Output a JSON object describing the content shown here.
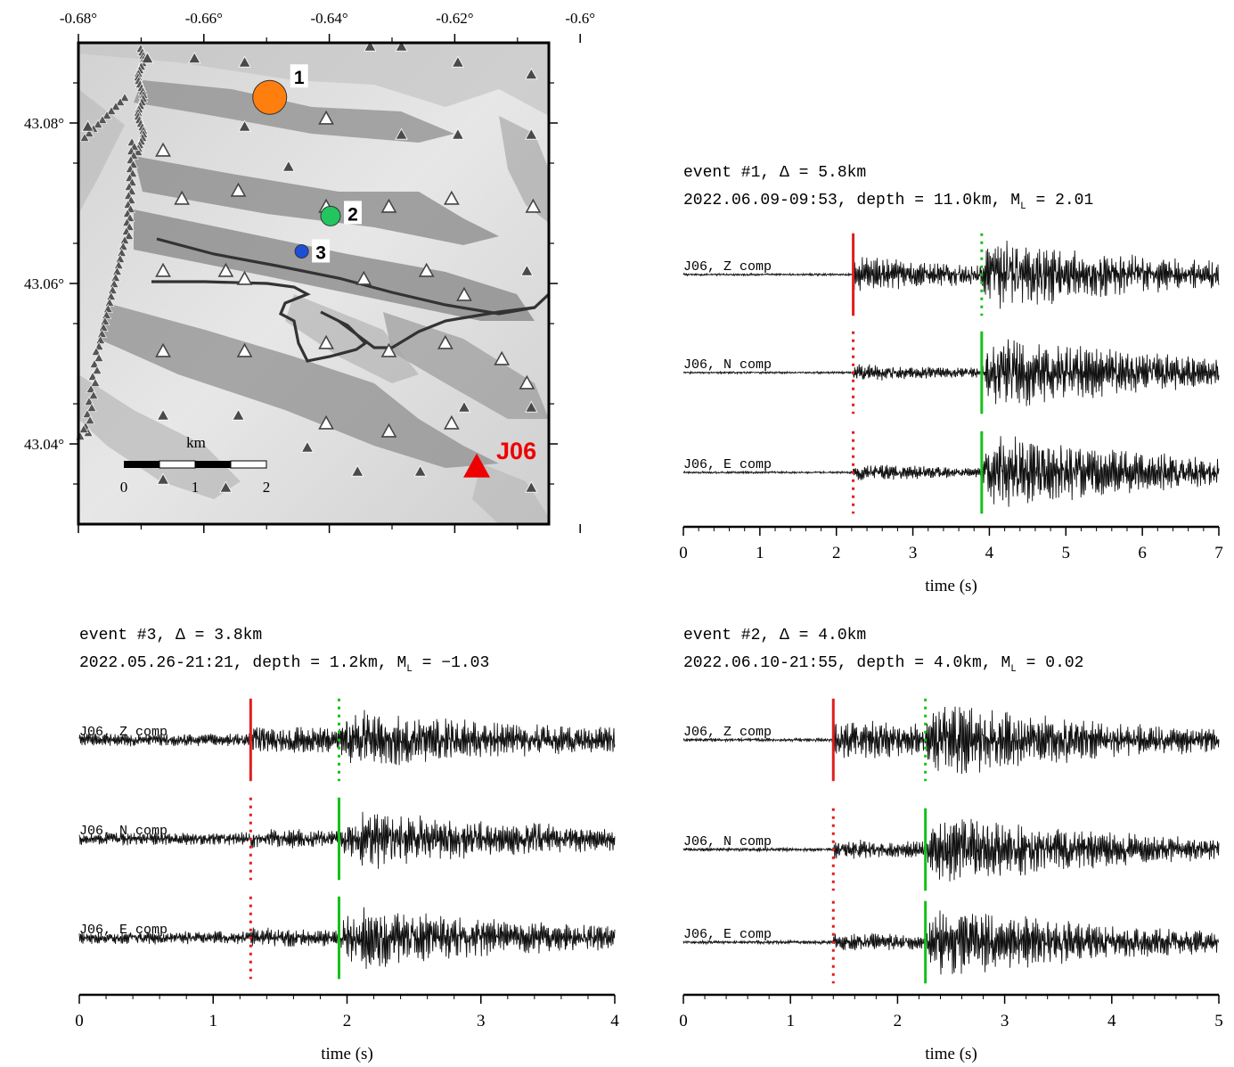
{
  "map": {
    "lon_ticks": [
      "-0.68°",
      "-0.66°",
      "-0.64°",
      "-0.62°",
      "-0.6°"
    ],
    "lon_values": [
      -0.68,
      -0.66,
      -0.64,
      -0.62,
      -0.6
    ],
    "lat_ticks": [
      "43.08°",
      "43.06°",
      "43.04°"
    ],
    "lat_values": [
      43.08,
      43.06,
      43.04
    ],
    "lon_range": [
      -0.68,
      -0.605
    ],
    "lat_range": [
      43.03,
      43.09
    ],
    "scale_bar": {
      "unit": "km",
      "labels": [
        "0",
        "1",
        "2"
      ]
    },
    "station": {
      "name": "J06",
      "lon": -0.6165,
      "lat": 43.0368,
      "color": "#ee0000"
    },
    "events": [
      {
        "label": "1",
        "lon": -0.6495,
        "lat": 43.0832,
        "color": "#ff7f0e",
        "size": "large"
      },
      {
        "label": "2",
        "lon": -0.6398,
        "lat": 43.0684,
        "color": "#22c55e",
        "size": "medium"
      },
      {
        "label": "3",
        "lon": -0.6444,
        "lat": 43.064,
        "color": "#1d4ed8",
        "size": "small"
      }
    ],
    "stations_filled": [
      [
        -0.669,
        43.088
      ],
      [
        -0.6615,
        43.088
      ],
      [
        -0.6535,
        43.0875
      ],
      [
        -0.6335,
        43.0895
      ],
      [
        -0.6285,
        43.0895
      ],
      [
        -0.6195,
        43.0875
      ],
      [
        -0.6078,
        43.086
      ],
      [
        -0.6785,
        43.0795
      ],
      [
        -0.6535,
        43.0795
      ],
      [
        -0.6285,
        43.0785
      ],
      [
        -0.6195,
        43.0785
      ],
      [
        -0.6078,
        43.0785
      ],
      [
        -0.6465,
        43.0745
      ],
      [
        -0.6665,
        43.0355
      ],
      [
        -0.6565,
        43.0345
      ],
      [
        -0.6355,
        43.0365
      ],
      [
        -0.6255,
        43.0365
      ],
      [
        -0.6078,
        43.0345
      ],
      [
        -0.6185,
        43.0445
      ],
      [
        -0.6078,
        43.0445
      ],
      [
        -0.6435,
        43.0395
      ],
      [
        -0.6545,
        43.0435
      ],
      [
        -0.6665,
        43.0435
      ],
      [
        -0.6085,
        43.0615
      ]
    ],
    "stations_open": [
      [
        -0.6635,
        43.0705
      ],
      [
        -0.6545,
        43.0715
      ],
      [
        -0.6405,
        43.0695
      ],
      [
        -0.6305,
        43.0695
      ],
      [
        -0.6205,
        43.0705
      ],
      [
        -0.6075,
        43.0695
      ],
      [
        -0.6665,
        43.0615
      ],
      [
        -0.6535,
        43.0605
      ],
      [
        -0.6345,
        43.0605
      ],
      [
        -0.6245,
        43.0615
      ],
      [
        -0.6185,
        43.0585
      ],
      [
        -0.6665,
        43.0515
      ],
      [
        -0.6535,
        43.0515
      ],
      [
        -0.6405,
        43.0525
      ],
      [
        -0.6305,
        43.0515
      ],
      [
        -0.6215,
        43.0525
      ],
      [
        -0.6125,
        43.0505
      ],
      [
        -0.6405,
        43.0425
      ],
      [
        -0.6305,
        43.0415
      ],
      [
        -0.6205,
        43.0425
      ],
      [
        -0.6085,
        43.0475
      ],
      [
        -0.6405,
        43.0805
      ],
      [
        -0.6665,
        43.0765
      ],
      [
        -0.6565,
        43.0615
      ]
    ]
  },
  "panels": [
    {
      "id": "event1",
      "title_line1": "event #1, Δ = 5.8km",
      "title_line2_prefix": "2022.06.09-09:53, depth = 11.0km, M",
      "title_line2_sub": "L",
      "title_line2_suffix": " = 2.01",
      "components": [
        "J06, Z comp",
        "J06, N comp",
        "J06, E comp"
      ],
      "xmin": 0,
      "xmax": 7,
      "xticks": [
        "0",
        "1",
        "2",
        "3",
        "4",
        "5",
        "6",
        "7"
      ],
      "xlabel": "time (s)",
      "p_pick": 2.22,
      "s_pick": 3.9,
      "p_amp": 0.8,
      "s_amp": 1.7,
      "noise": 0.05,
      "coda_decay": 0.35
    },
    {
      "id": "event3",
      "title_line1": "event #3, Δ = 3.8km",
      "title_line2_prefix": "2022.05.26-21:21, depth = 1.2km, M",
      "title_line2_sub": "L",
      "title_line2_suffix": " = −1.03",
      "components": [
        "J06, Z comp",
        "J06, N comp",
        "J06, E comp"
      ],
      "xmin": 0,
      "xmax": 4,
      "xticks": [
        "0",
        "1",
        "2",
        "3",
        "4"
      ],
      "xlabel": "time (s)",
      "p_pick": 1.28,
      "s_pick": 1.94,
      "p_amp": 0.35,
      "s_amp": 1.3,
      "noise": 0.3,
      "coda_decay": 0.9
    },
    {
      "id": "event2",
      "title_line1": "event #2, Δ = 4.0km",
      "title_line2_prefix": "2022.06.10-21:55, depth = 4.0km, M",
      "title_line2_sub": "L",
      "title_line2_suffix": " = 0.02",
      "components": [
        "J06, Z comp",
        "J06, N comp",
        "J06, E comp"
      ],
      "xmin": 0,
      "xmax": 5,
      "xticks": [
        "0",
        "1",
        "2",
        "3",
        "4",
        "5"
      ],
      "xlabel": "time (s)",
      "p_pick": 1.4,
      "s_pick": 2.26,
      "p_amp": 0.9,
      "s_amp": 1.5,
      "noise": 0.08,
      "coda_decay": 0.55
    }
  ],
  "colors": {
    "p_pick": "#e11d1d",
    "s_pick": "#16c01a",
    "trace": "#111111"
  }
}
